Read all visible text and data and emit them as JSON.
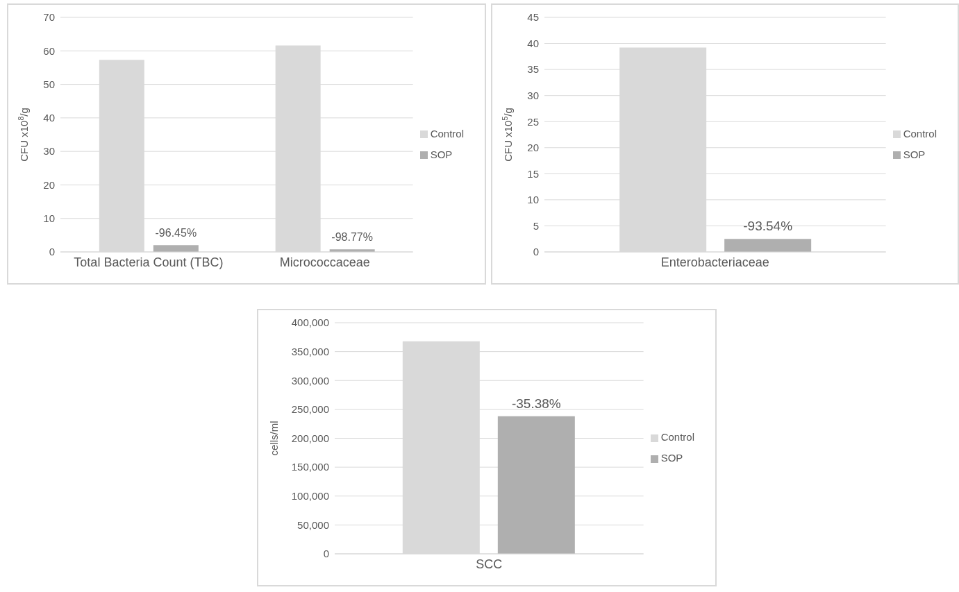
{
  "chart_data": [
    {
      "type": "bar",
      "ylabel": "CFU x10$^{8}$/g",
      "categories": [
        "Total Bacteria Count (TBC)",
        "Micrococcaceae"
      ],
      "series": [
        {
          "name": "Control",
          "color": "#d9d9d9",
          "values": [
            57.3,
            61.6
          ]
        },
        {
          "name": "SOP",
          "color": "#afafaf",
          "values": [
            2.0,
            0.8
          ]
        }
      ],
      "ylim": [
        0,
        70
      ],
      "yticks": [
        0,
        10,
        20,
        30,
        40,
        50,
        60,
        70
      ],
      "grid": "y",
      "legend": "right",
      "annotations": [
        "-96.45%",
        "-98.77%"
      ]
    },
    {
      "type": "bar",
      "ylabel": "CFU x10$^{5}$/g",
      "categories": [
        "Enterobacteriaceae"
      ],
      "series": [
        {
          "name": "Control",
          "color": "#d9d9d9",
          "values": [
            39.2
          ]
        },
        {
          "name": "SOP",
          "color": "#afafaf",
          "values": [
            2.5
          ]
        }
      ],
      "ylim": [
        0,
        45
      ],
      "yticks": [
        0,
        5,
        10,
        15,
        20,
        25,
        30,
        35,
        40,
        45
      ],
      "grid": "y",
      "legend": "right",
      "annotations": [
        "-93.54%"
      ]
    },
    {
      "type": "bar",
      "ylabel": "cells/ml",
      "categories": [
        "SCC"
      ],
      "series": [
        {
          "name": "Control",
          "color": "#d9d9d9",
          "values": [
            368000
          ]
        },
        {
          "name": "SOP",
          "color": "#afafaf",
          "values": [
            238000
          ]
        }
      ],
      "ylim": [
        0,
        400000
      ],
      "yticks": [
        {
          "value": 0,
          "label": "0"
        },
        {
          "value": 50000,
          "label": "50,000"
        },
        {
          "value": 100000,
          "label": "100,000"
        },
        {
          "value": 150000,
          "label": "150,000"
        },
        {
          "value": 200000,
          "label": "200,000"
        },
        {
          "value": 250000,
          "label": "250,000"
        },
        {
          "value": 300000,
          "label": "300,000"
        },
        {
          "value": 350000,
          "label": "350,000"
        },
        {
          "value": 400000,
          "label": "400,000"
        }
      ],
      "grid": "y",
      "legend": "right",
      "annotations": [
        "-35.38%"
      ]
    }
  ]
}
